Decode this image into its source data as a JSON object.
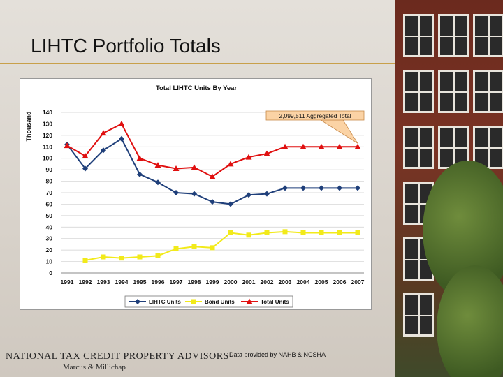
{
  "slide": {
    "title": "LIHTC Portfolio Totals",
    "source_note": "Data provided by NAHB & NCSHA",
    "logo_line1": "NATIONAL TAX CREDIT PROPERTY ADVISORS",
    "logo_line2": "Marcus & Millichap"
  },
  "chart_data": {
    "type": "line",
    "title": "Total LIHTC Units By Year",
    "ylabel": "Thousand",
    "xlabel": "",
    "ylim": [
      0,
      140
    ],
    "yticks": [
      0,
      10,
      20,
      30,
      40,
      50,
      60,
      70,
      80,
      90,
      100,
      110,
      120,
      130,
      140
    ],
    "grid": true,
    "legend_position": "bottom",
    "categories": [
      "1991",
      "1992",
      "1993",
      "1994",
      "1995",
      "1996",
      "1997",
      "1998",
      "1999",
      "2000",
      "2001",
      "2002",
      "2003",
      "2004",
      "2005",
      "2006",
      "2007"
    ],
    "series": [
      {
        "name": "LIHTC Units",
        "color": "#1f3f7a",
        "marker": "diamond",
        "values": [
          112,
          91,
          107,
          117,
          86,
          79,
          70,
          69,
          62,
          60,
          68,
          69,
          74,
          74,
          74,
          74,
          74
        ]
      },
      {
        "name": "Bond Units",
        "color": "#f2ea1a",
        "marker": "square",
        "values": [
          null,
          11,
          14,
          13,
          14,
          15,
          21,
          23,
          22,
          35,
          33,
          35,
          36,
          35,
          35,
          35,
          35
        ]
      },
      {
        "name": "Total Units",
        "color": "#e01010",
        "marker": "triangle",
        "values": [
          111,
          102,
          122,
          130,
          100,
          94,
          91,
          92,
          84,
          95,
          101,
          104,
          110,
          110,
          110,
          110,
          110
        ]
      }
    ],
    "annotation": {
      "text": "2,099,511 Aggregated Total",
      "points_to": {
        "x": "2007",
        "y": 110
      }
    }
  }
}
